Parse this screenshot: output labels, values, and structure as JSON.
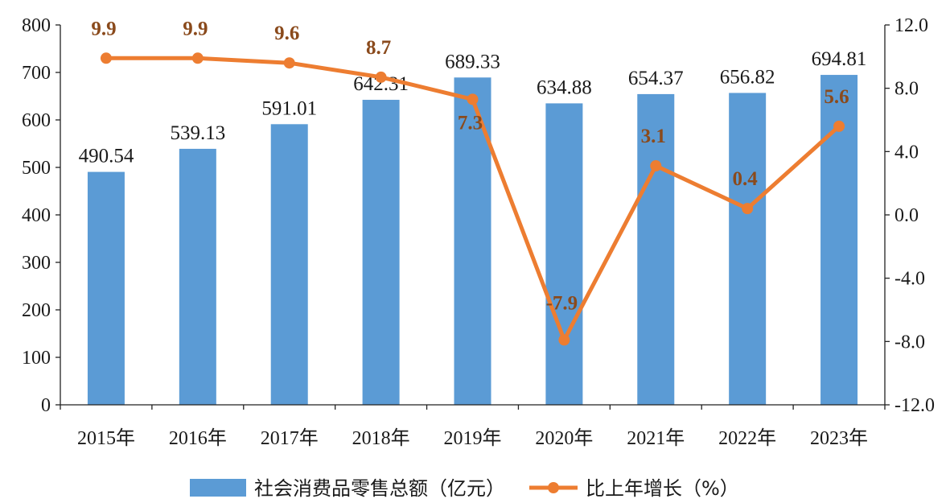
{
  "chart_data": {
    "type": "bar",
    "categories": [
      "2015年",
      "2016年",
      "2017年",
      "2018年",
      "2019年",
      "2020年",
      "2021年",
      "2022年",
      "2023年"
    ],
    "series": [
      {
        "name": "社会消费品零售总额（亿元）",
        "type": "bar",
        "axis": "left",
        "values": [
          490.54,
          539.13,
          591.01,
          642.31,
          689.33,
          634.88,
          654.37,
          656.82,
          694.81
        ],
        "labels": [
          "490.54",
          "539.13",
          "591.01",
          "642.31",
          "689.33",
          "634.88",
          "654.37",
          "656.82",
          "694.81"
        ]
      },
      {
        "name": "比上年增长（%）",
        "type": "line",
        "axis": "right",
        "values": [
          9.9,
          9.9,
          9.6,
          8.7,
          7.3,
          -7.9,
          3.1,
          0.4,
          5.6
        ],
        "labels": [
          "9.9",
          "9.9",
          "9.6",
          "8.7",
          "7.3",
          "-7.9",
          "3.1",
          "0.4",
          "5.6"
        ]
      }
    ],
    "y_left": {
      "range": [
        0,
        800
      ],
      "ticks": [
        0,
        100,
        200,
        300,
        400,
        500,
        600,
        700,
        800
      ],
      "tick_labels": [
        "0",
        "100",
        "200",
        "300",
        "400",
        "500",
        "600",
        "700",
        "800"
      ]
    },
    "y_right": {
      "range": [
        -12,
        12
      ],
      "ticks": [
        -12,
        -8,
        -4,
        0,
        4,
        8,
        12
      ],
      "tick_labels": [
        "-12.0",
        "-8.0",
        "-4.0",
        "0.0",
        "4.0",
        "8.0",
        "12.0"
      ]
    },
    "grid": false,
    "legend_position": "bottom",
    "colors": {
      "bar": "#5b9bd5",
      "line": "#ed7d31",
      "growth_label": "#8a4a1c"
    }
  }
}
